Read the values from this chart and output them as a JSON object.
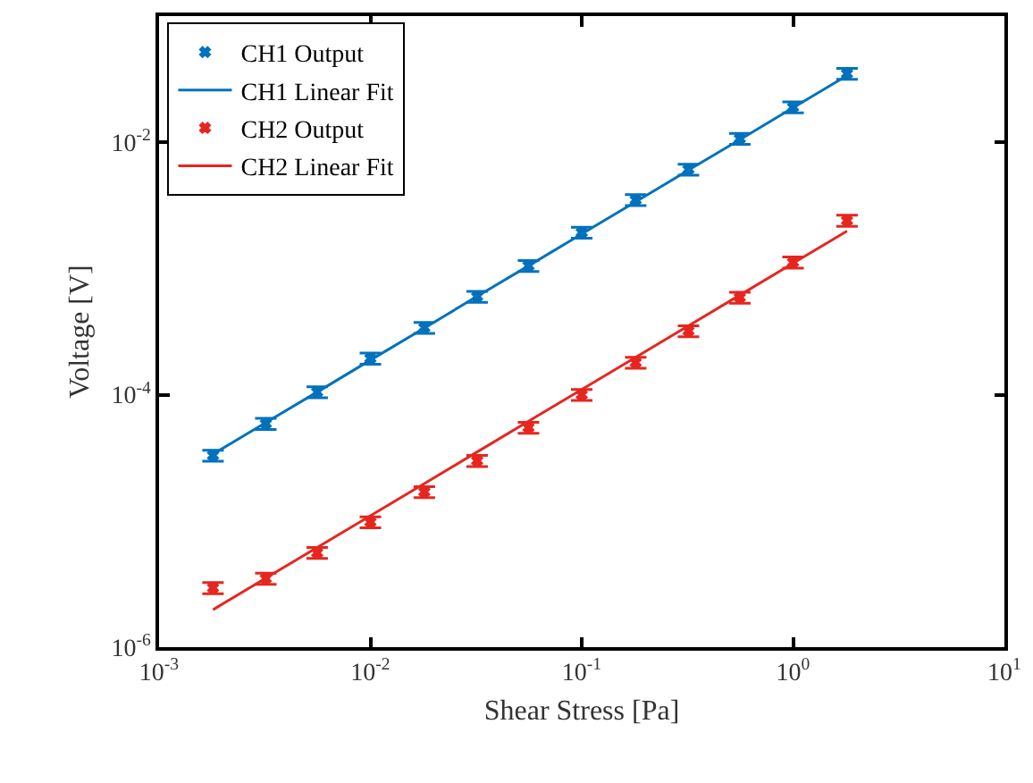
{
  "chart_data": {
    "type": "scatter",
    "xlabel": "Shear Stress [Pa]",
    "ylabel": "Voltage [V]",
    "log": "xy",
    "grid": false,
    "legend": "top left",
    "xlim": [
      0.001,
      10
    ],
    "ylim": [
      1e-06,
      0.1
    ],
    "xticks": [
      {
        "value": 0.001,
        "label": "10$^{-3}$"
      },
      {
        "value": 0.01,
        "label": "10$^{-2}$"
      },
      {
        "value": 0.1,
        "label": "10$^{-1}$"
      },
      {
        "value": 1,
        "label": "10$^{0}$"
      },
      {
        "value": 10,
        "label": "10$^{1}$"
      }
    ],
    "yticks": [
      {
        "value": 1e-06,
        "label": "10$^{-6}$"
      },
      {
        "value": 0.0001,
        "label": "10$^{-4}$"
      },
      {
        "value": 0.01,
        "label": "10$^{-2}$"
      }
    ],
    "x": [
      0.0018,
      0.0032,
      0.0056,
      0.01,
      0.018,
      0.032,
      0.056,
      0.1,
      0.18,
      0.32,
      0.56,
      1.0,
      1.8
    ],
    "series": [
      {
        "name": "CH1 Output",
        "type": "scatter",
        "marker": "cross",
        "color": "#0072bd",
        "values": [
          3.3e-05,
          5.9e-05,
          0.000105,
          0.000194,
          0.00034,
          0.0006,
          0.00105,
          0.00193,
          0.0035,
          0.0061,
          0.0107,
          0.019,
          0.035
        ],
        "errors": [
          3.3e-06,
          5.9e-06,
          1.05e-05,
          1.94e-05,
          3.4e-05,
          6e-05,
          0.000105,
          0.000193,
          0.00035,
          0.00061,
          0.00107,
          0.0019,
          0.0035
        ]
      },
      {
        "name": "CH1 Linear Fit",
        "type": "line",
        "marker": "none",
        "line_style": "solid",
        "color": "#0072bd",
        "values": [
          3.38e-05,
          6.02e-05,
          0.000105,
          0.000188,
          0.000338,
          0.000602,
          0.00105,
          0.00188,
          0.00338,
          0.00602,
          0.0105,
          0.0188,
          0.0338
        ]
      },
      {
        "name": "CH2 Output",
        "type": "scatter",
        "marker": "cross",
        "color": "#e6261f",
        "values": [
          2.95e-06,
          3.5e-06,
          5.6e-06,
          9.8e-06,
          1.7e-05,
          3e-05,
          5.5e-05,
          0.0001,
          0.00018,
          0.00032,
          0.00059,
          0.00112,
          0.0024
        ],
        "errors": [
          3e-07,
          3.5e-07,
          5.6e-07,
          9.8e-07,
          1.7e-06,
          3e-06,
          5.5e-06,
          1e-05,
          1.8e-05,
          3.2e-05,
          5.9e-05,
          0.000112,
          0.00024
        ]
      },
      {
        "name": "CH2 Linear Fit",
        "type": "line",
        "marker": "none",
        "line_style": "solid",
        "color": "#e6261f",
        "values": [
          1.98e-06,
          3.52e-06,
          6.16e-06,
          1.1e-05,
          1.98e-05,
          3.52e-05,
          6.16e-05,
          0.00011,
          0.000198,
          0.000352,
          0.000616,
          0.0011,
          0.00198
        ]
      }
    ]
  }
}
